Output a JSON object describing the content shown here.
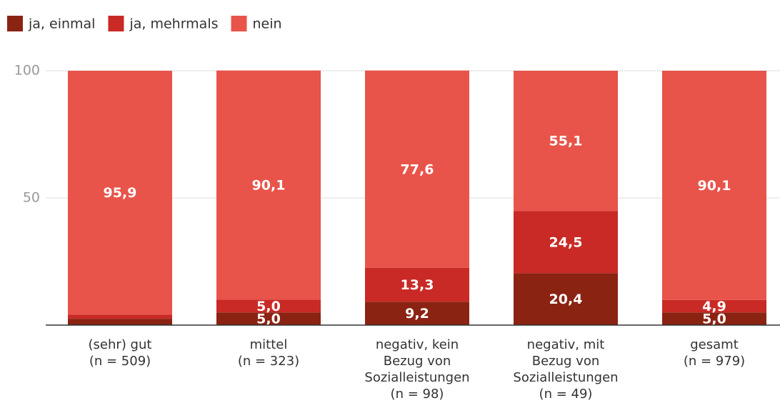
{
  "chart_data": {
    "type": "stacked_bar",
    "categories": [
      [
        "(sehr) gut",
        "(n = 509)"
      ],
      [
        "mittel",
        "(n = 323)"
      ],
      [
        "negativ, kein",
        "Bezug von",
        "Sozialleistungen",
        "(n = 98)"
      ],
      [
        "negativ, mit",
        "Bezug von",
        "Sozialleistungen",
        "(n = 49)"
      ],
      [
        "gesamt",
        "(n = 979)"
      ]
    ],
    "series": [
      {
        "name": "ja, einmal",
        "color": "#8b2313",
        "values": [
          2.5,
          5.0,
          9.2,
          20.4,
          5.0
        ],
        "value_labels": [
          null,
          "5,0",
          "9,2",
          "20,4",
          "5,0"
        ]
      },
      {
        "name": "ja, mehrmals",
        "color": "#c92a25",
        "values": [
          1.6,
          5.0,
          13.3,
          24.5,
          4.9
        ],
        "value_labels": [
          null,
          "5,0",
          "13,3",
          "24,5",
          "4,9"
        ]
      },
      {
        "name": "nein",
        "color": "#e8544a",
        "values": [
          95.9,
          90.1,
          77.6,
          55.1,
          90.1
        ],
        "value_labels": [
          "95,9",
          "90,1",
          "77,6",
          "55,1",
          "90,1"
        ]
      }
    ],
    "ylim": [
      0,
      100
    ],
    "yticks": [
      50,
      100
    ],
    "grid": true
  }
}
